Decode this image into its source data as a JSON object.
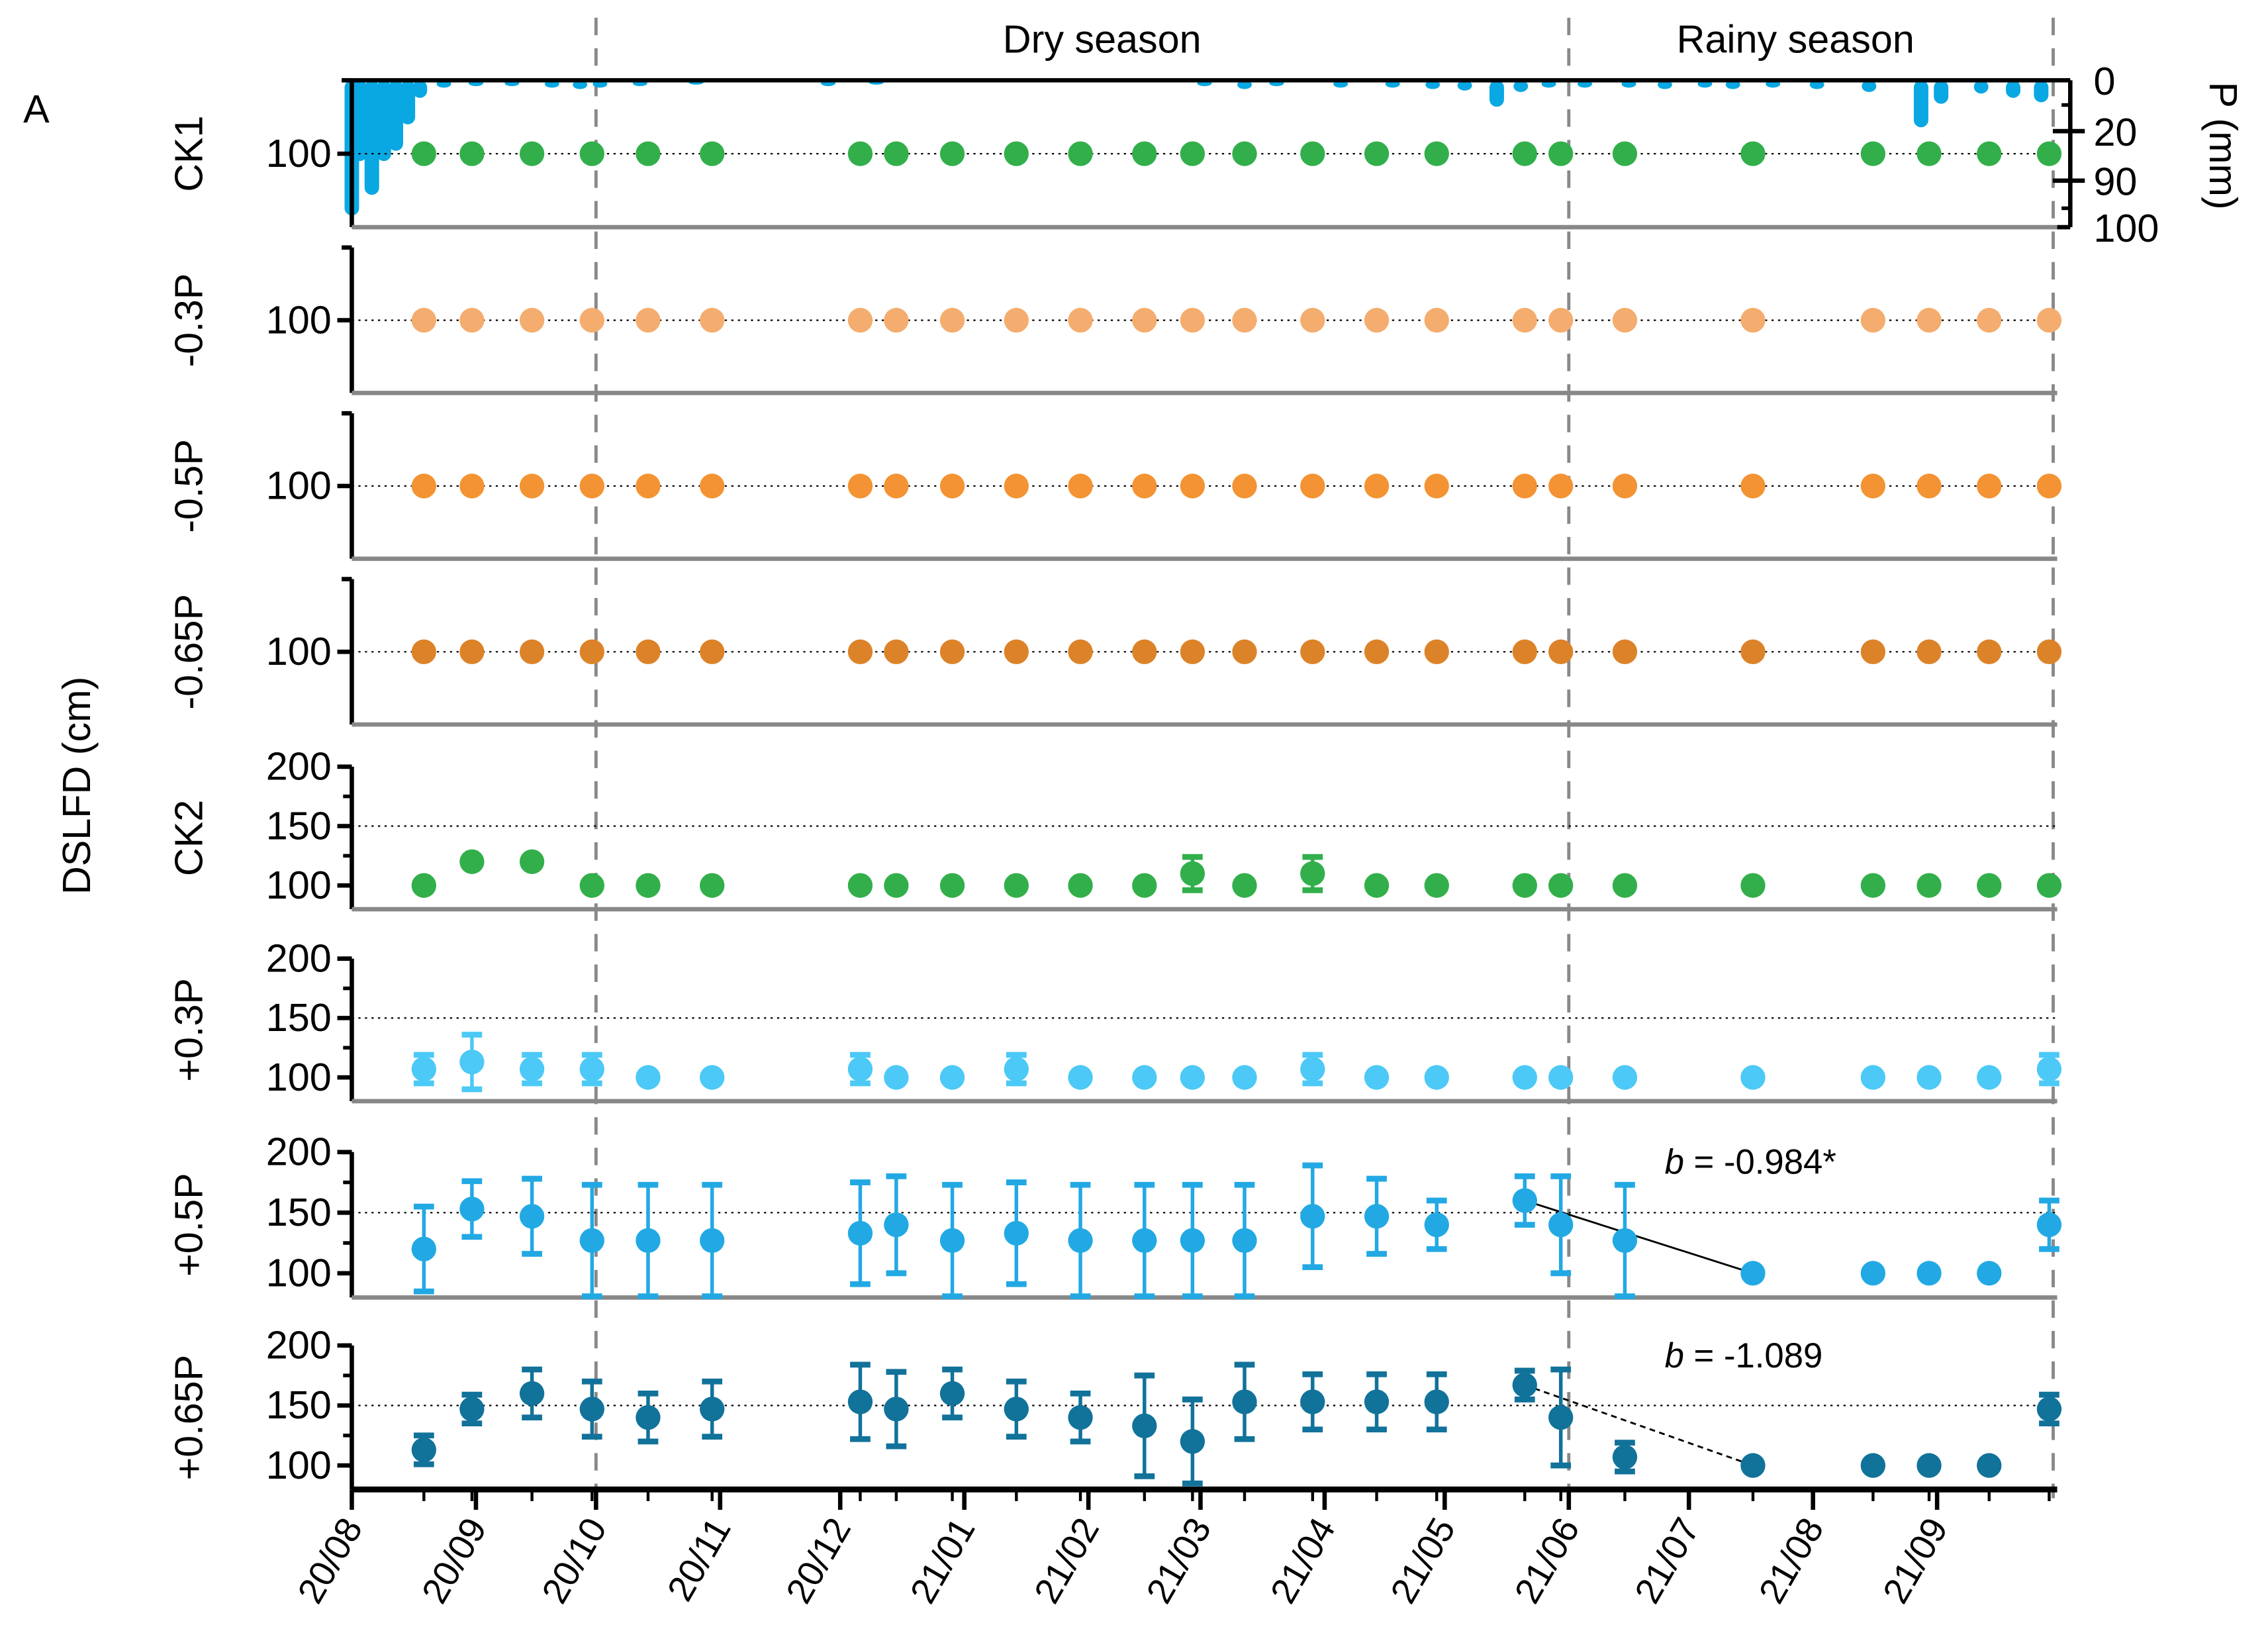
{
  "figure_label": "A",
  "y_axis_title": "DSLFD (cm)",
  "right_axis_title": "P (mm)",
  "right_axis_ticks": [
    "0",
    "20",
    "90",
    "100"
  ],
  "season_labels": [
    "Dry season",
    "Rainy season"
  ],
  "colors": {
    "precip": "#0AA8E2",
    "CK1": "#32AF4B",
    "m03": "#F4AD6E",
    "m05": "#F39333",
    "m065": "#DC8329",
    "CK2": "#32AF4B",
    "p03": "#4CC9F6",
    "p05": "#22A9E4",
    "p065": "#11729A",
    "season_line": "#888888",
    "panel_baseline": "#888888"
  },
  "chart_data": {
    "type": "scatter",
    "title": "",
    "xlabel": "",
    "ylabel": "DSLFD (cm)",
    "x_tick_labels": [
      "20/08",
      "20/09",
      "20/10",
      "20/11",
      "20/12",
      "21/01",
      "21/02",
      "21/03",
      "21/04",
      "21/05",
      "21/06",
      "21/07",
      "21/08",
      "21/09"
    ],
    "x_range": [
      "2020-08-01",
      "2021-10-01"
    ],
    "season_boundaries": [
      "2020-10-01",
      "2021-06-01",
      "2021-09-30"
    ],
    "sample_dates": [
      "2020-08-19",
      "2020-08-31",
      "2020-09-15",
      "2020-09-30",
      "2020-10-14",
      "2020-10-30",
      "2020-12-06",
      "2020-12-15",
      "2020-12-29",
      "2021-01-14",
      "2021-01-30",
      "2021-02-15",
      "2021-02-27",
      "2021-03-12",
      "2021-03-29",
      "2021-04-14",
      "2021-04-29",
      "2021-05-21",
      "2021-05-30",
      "2021-06-15",
      "2021-07-17",
      "2021-08-16",
      "2021-08-30",
      "2021-09-14",
      "2021-09-29"
    ],
    "panels": [
      {
        "name": "CK1",
        "color_key": "CK1",
        "ylim": [
          0,
          200
        ],
        "yticks": [
          "100"
        ],
        "ref_line": 100,
        "values": [
          100,
          100,
          100,
          100,
          100,
          100,
          100,
          100,
          100,
          100,
          100,
          100,
          100,
          100,
          100,
          100,
          100,
          100,
          100,
          100,
          100,
          100,
          100,
          100,
          100
        ],
        "errors": [
          0,
          0,
          0,
          0,
          0,
          0,
          0,
          0,
          0,
          0,
          0,
          0,
          0,
          0,
          0,
          0,
          0,
          0,
          0,
          0,
          0,
          0,
          0,
          0,
          0
        ]
      },
      {
        "name": "-0.3P",
        "color_key": "m03",
        "ylim": [
          0,
          200
        ],
        "yticks": [
          "100"
        ],
        "ref_line": 100,
        "values": [
          100,
          100,
          100,
          100,
          100,
          100,
          100,
          100,
          100,
          100,
          100,
          100,
          100,
          100,
          100,
          100,
          100,
          100,
          100,
          100,
          100,
          100,
          100,
          100,
          100
        ],
        "errors": [
          0,
          0,
          0,
          0,
          0,
          0,
          0,
          0,
          0,
          0,
          0,
          0,
          0,
          0,
          0,
          0,
          0,
          0,
          0,
          0,
          0,
          0,
          0,
          0,
          0
        ]
      },
      {
        "name": "-0.5P",
        "color_key": "m05",
        "ylim": [
          0,
          200
        ],
        "yticks": [
          "100"
        ],
        "ref_line": 100,
        "values": [
          100,
          100,
          100,
          100,
          100,
          100,
          100,
          100,
          100,
          100,
          100,
          100,
          100,
          100,
          100,
          100,
          100,
          100,
          100,
          100,
          100,
          100,
          100,
          100,
          100
        ],
        "errors": [
          0,
          0,
          0,
          0,
          0,
          0,
          0,
          0,
          0,
          0,
          0,
          0,
          0,
          0,
          0,
          0,
          0,
          0,
          0,
          0,
          0,
          0,
          0,
          0,
          0
        ]
      },
      {
        "name": "-0.65P",
        "color_key": "m065",
        "ylim": [
          0,
          200
        ],
        "yticks": [
          "100"
        ],
        "ref_line": 100,
        "values": [
          100,
          100,
          100,
          100,
          100,
          100,
          100,
          100,
          100,
          100,
          100,
          100,
          100,
          100,
          100,
          100,
          100,
          100,
          100,
          100,
          100,
          100,
          100,
          100,
          100
        ],
        "errors": [
          0,
          0,
          0,
          0,
          0,
          0,
          0,
          0,
          0,
          0,
          0,
          0,
          0,
          0,
          0,
          0,
          0,
          0,
          0,
          0,
          0,
          0,
          0,
          0,
          0
        ]
      },
      {
        "name": "CK2",
        "color_key": "CK2",
        "ylim": [
          80,
          200
        ],
        "yticks": [
          "100",
          "150",
          "200"
        ],
        "ref_line": 150,
        "values": [
          100,
          120,
          120,
          100,
          100,
          100,
          100,
          100,
          100,
          100,
          100,
          100,
          110,
          100,
          110,
          100,
          100,
          100,
          100,
          100,
          100,
          100,
          100,
          100,
          100
        ],
        "errors": [
          0,
          0,
          0,
          0,
          0,
          0,
          0,
          0,
          0,
          0,
          0,
          0,
          14,
          0,
          14,
          0,
          0,
          0,
          0,
          0,
          0,
          0,
          0,
          0,
          0
        ]
      },
      {
        "name": "+0.3P",
        "color_key": "p03",
        "ylim": [
          80,
          200
        ],
        "yticks": [
          "100",
          "150",
          "200"
        ],
        "ref_line": 150,
        "values": [
          107,
          113,
          107,
          107,
          100,
          100,
          107,
          100,
          100,
          107,
          100,
          100,
          100,
          100,
          107,
          100,
          100,
          100,
          100,
          100,
          100,
          100,
          100,
          100,
          107
        ],
        "errors": [
          12,
          23,
          12,
          12,
          0,
          0,
          12,
          0,
          0,
          12,
          0,
          0,
          0,
          0,
          12,
          0,
          0,
          0,
          0,
          0,
          0,
          0,
          0,
          0,
          12
        ]
      },
      {
        "name": "+0.5P",
        "color_key": "p05",
        "ylim": [
          80,
          200
        ],
        "yticks": [
          "100",
          "150",
          "200"
        ],
        "ref_line": 150,
        "values": [
          120,
          153,
          147,
          127,
          127,
          127,
          133,
          140,
          127,
          133,
          127,
          127,
          127,
          127,
          147,
          147,
          140,
          160,
          140,
          127,
          100,
          100,
          100,
          100,
          140
        ],
        "errors": [
          35,
          23,
          31,
          46,
          46,
          46,
          42,
          40,
          46,
          42,
          46,
          46,
          46,
          46,
          42,
          31,
          20,
          20,
          40,
          46,
          0,
          0,
          0,
          0,
          20
        ],
        "regression": {
          "label": "b = -0.984*",
          "from_index": 17,
          "to_index": 20,
          "style": "solid"
        }
      },
      {
        "name": "+0.65P",
        "color_key": "p065",
        "ylim": [
          80,
          200
        ],
        "yticks": [
          "100",
          "150",
          "200"
        ],
        "ref_line": 150,
        "values": [
          113,
          147,
          160,
          147,
          140,
          147,
          153,
          147,
          160,
          147,
          140,
          133,
          120,
          153,
          153,
          153,
          153,
          167,
          140,
          107,
          100,
          100,
          100,
          100,
          147
        ],
        "errors": [
          12,
          12,
          20,
          23,
          20,
          23,
          31,
          31,
          20,
          23,
          20,
          42,
          35,
          31,
          23,
          23,
          23,
          12,
          40,
          12,
          0,
          0,
          0,
          0,
          12
        ],
        "regression": {
          "label": "b = -1.089",
          "from_index": 17,
          "to_index": 20,
          "style": "dashed"
        }
      }
    ],
    "precipitation": {
      "name": "P (mm)",
      "axis": "right, inverted",
      "ylim_labels": [
        "0",
        "20",
        "90",
        "100"
      ],
      "note": "daily precipitation bars hanging from top of CK1 panel",
      "bars": [
        {
          "date": "2020-08-01",
          "depth": 0.92
        },
        {
          "date": "2020-08-03",
          "depth": 0.55
        },
        {
          "date": "2020-08-06",
          "depth": 0.78
        },
        {
          "date": "2020-08-09",
          "depth": 0.55
        },
        {
          "date": "2020-08-12",
          "depth": 0.48
        },
        {
          "date": "2020-08-15",
          "depth": 0.3
        },
        {
          "date": "2020-08-18",
          "depth": 0.12
        },
        {
          "date": "2020-08-24",
          "depth": 0.05
        },
        {
          "date": "2020-09-01",
          "depth": 0.04
        },
        {
          "date": "2020-09-10",
          "depth": 0.04
        },
        {
          "date": "2020-09-20",
          "depth": 0.05
        },
        {
          "date": "2020-09-27",
          "depth": 0.06
        },
        {
          "date": "2020-10-02",
          "depth": 0.05
        },
        {
          "date": "2020-10-12",
          "depth": 0.04
        },
        {
          "date": "2020-10-26",
          "depth": 0.03
        },
        {
          "date": "2020-11-28",
          "depth": 0.04
        },
        {
          "date": "2020-12-10",
          "depth": 0.03
        },
        {
          "date": "2021-03-02",
          "depth": 0.04
        },
        {
          "date": "2021-03-12",
          "depth": 0.06
        },
        {
          "date": "2021-03-20",
          "depth": 0.04
        },
        {
          "date": "2021-04-05",
          "depth": 0.05
        },
        {
          "date": "2021-04-18",
          "depth": 0.05
        },
        {
          "date": "2021-04-28",
          "depth": 0.06
        },
        {
          "date": "2021-05-06",
          "depth": 0.07
        },
        {
          "date": "2021-05-14",
          "depth": 0.18
        },
        {
          "date": "2021-05-20",
          "depth": 0.08
        },
        {
          "date": "2021-05-27",
          "depth": 0.05
        },
        {
          "date": "2021-06-05",
          "depth": 0.05
        },
        {
          "date": "2021-06-16",
          "depth": 0.05
        },
        {
          "date": "2021-06-25",
          "depth": 0.06
        },
        {
          "date": "2021-07-05",
          "depth": 0.05
        },
        {
          "date": "2021-07-12",
          "depth": 0.06
        },
        {
          "date": "2021-07-22",
          "depth": 0.05
        },
        {
          "date": "2021-08-02",
          "depth": 0.06
        },
        {
          "date": "2021-08-15",
          "depth": 0.08
        },
        {
          "date": "2021-08-28",
          "depth": 0.32
        },
        {
          "date": "2021-09-02",
          "depth": 0.16
        },
        {
          "date": "2021-09-12",
          "depth": 0.09
        },
        {
          "date": "2021-09-20",
          "depth": 0.12
        },
        {
          "date": "2021-09-27",
          "depth": 0.15
        }
      ]
    }
  }
}
